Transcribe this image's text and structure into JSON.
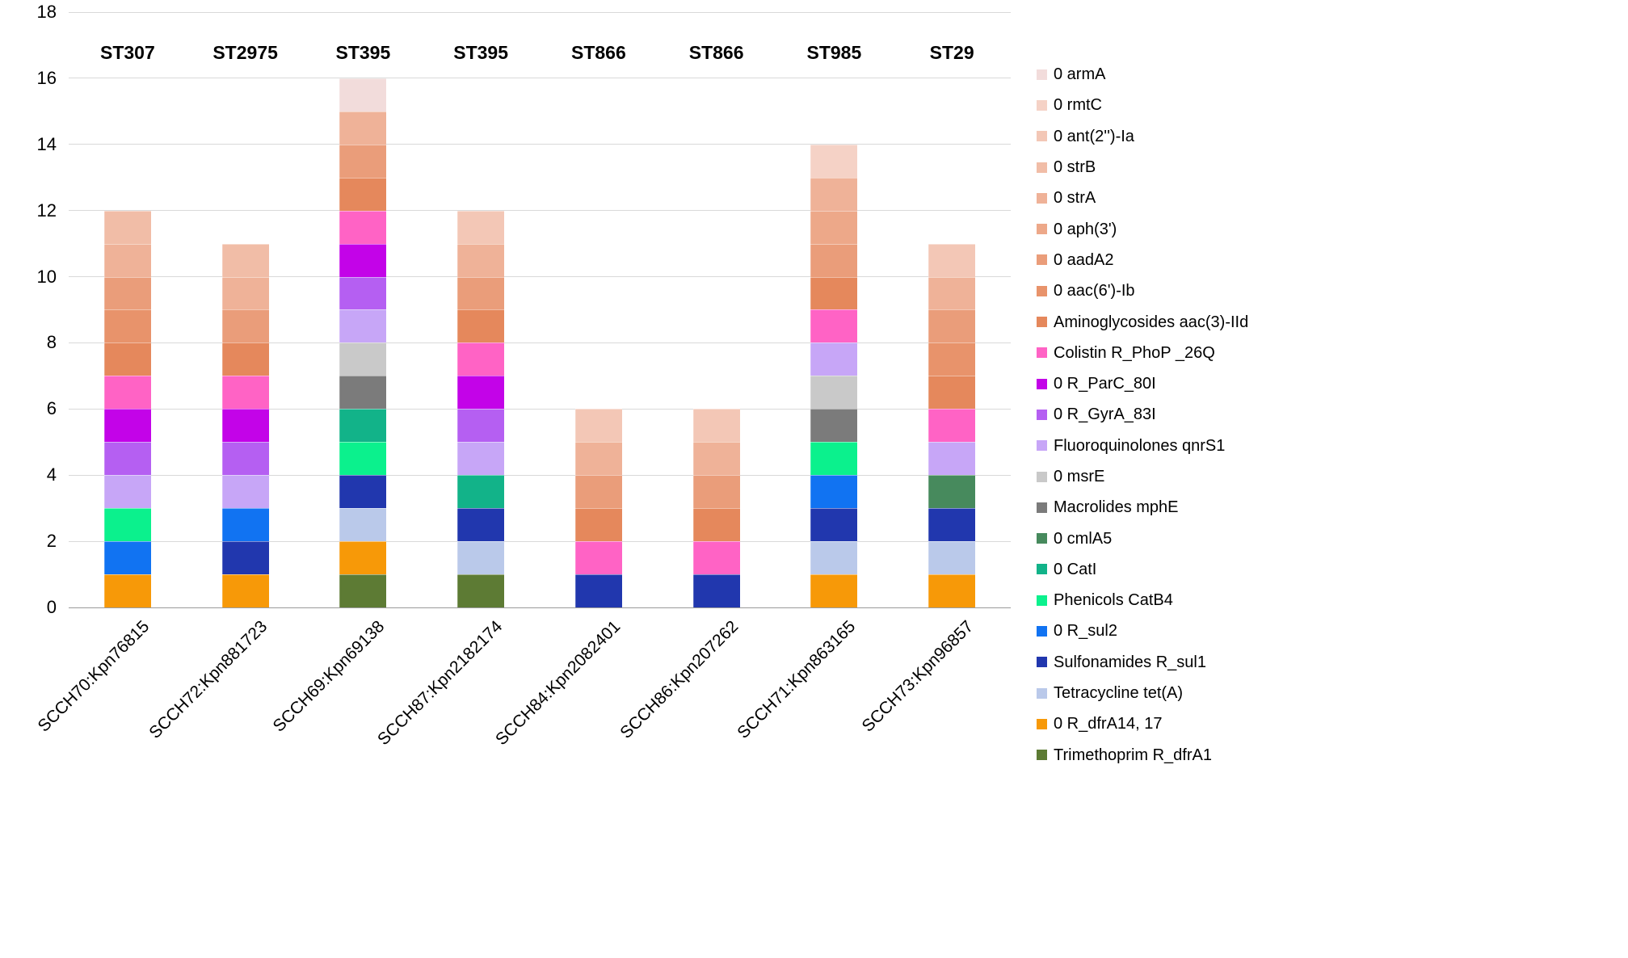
{
  "chart_data": {
    "type": "bar",
    "stacked": true,
    "title": "",
    "xlabel": "",
    "ylabel": "",
    "ylim": [
      0,
      18
    ],
    "ytick_step": 2,
    "yticks": [
      0,
      2,
      4,
      6,
      8,
      10,
      12,
      14,
      16,
      18
    ],
    "grid": true,
    "legend_position": "right",
    "unit_per_segment": 1,
    "genes": [
      {
        "id": "armA",
        "label": "0  armA",
        "color": "#f2dcdb"
      },
      {
        "id": "rmtC",
        "label": "0  rmtC",
        "color": "#f5d2c6"
      },
      {
        "id": "ant2Ia",
        "label": "0  ant(2'')-Ia",
        "color": "#f3c7b6"
      },
      {
        "id": "strB",
        "label": "0  strB",
        "color": "#f1bda7"
      },
      {
        "id": "strA",
        "label": "0  strA",
        "color": "#efb298"
      },
      {
        "id": "aph3",
        "label": "0 aph(3')",
        "color": "#eda889"
      },
      {
        "id": "aadA2",
        "label": "0  aadA2",
        "color": "#ea9d7a"
      },
      {
        "id": "aac6Ib",
        "label": "0 aac(6')-Ib",
        "color": "#e8936b"
      },
      {
        "id": "aac3IId",
        "label": "Aminoglycosides aac(3)-IId",
        "color": "#e5885c"
      },
      {
        "id": "PhoP",
        "label": "Colistin R_PhoP _26Q",
        "color": "#ff63c5"
      },
      {
        "id": "ParC",
        "label": "0 R_ParC_80I",
        "color": "#c303e8"
      },
      {
        "id": "GyrA",
        "label": "0 R_GyrA_83I",
        "color": "#b55ff2"
      },
      {
        "id": "qnrS1",
        "label": "Fluoroquinolones qnrS1",
        "color": "#c7a6f7"
      },
      {
        "id": "msrE",
        "label": "0 msrE",
        "color": "#c9c9c9"
      },
      {
        "id": "mphE",
        "label": "Macrolides mphE",
        "color": "#7b7b7b"
      },
      {
        "id": "cmlA5",
        "label": "0 cmlA5",
        "color": "#478a5d"
      },
      {
        "id": "CatI",
        "label": "0 CatI",
        "color": "#12b389"
      },
      {
        "id": "CatB4",
        "label": "Phenicols CatB4",
        "color": "#0bf18d"
      },
      {
        "id": "sul2",
        "label": "0 R_sul2",
        "color": "#1173f2"
      },
      {
        "id": "sul1",
        "label": "Sulfonamides R_sul1",
        "color": "#2137ae"
      },
      {
        "id": "tetA",
        "label": "Tetracycline tet(A)",
        "color": "#bac9ea"
      },
      {
        "id": "dfrA14",
        "label": "0 R_dfrA14, 17",
        "color": "#f79908"
      },
      {
        "id": "dfrA1",
        "label": "Trimethoprim R_dfrA1",
        "color": "#5d7b34"
      }
    ],
    "bars": [
      {
        "category": "SCCH70:Kpn76815",
        "st": "ST307",
        "total": 12,
        "segments_bottom_to_top": [
          "dfrA14",
          "sul2",
          "CatB4",
          "qnrS1",
          "GyrA",
          "ParC",
          "PhoP",
          "aac3IId",
          "aac6Ib",
          "aadA2",
          "strA",
          "strB"
        ]
      },
      {
        "category": "SCCH72:Kpn881723",
        "st": "ST2975",
        "total": 11,
        "segments_bottom_to_top": [
          "dfrA14",
          "sul1",
          "sul2",
          "qnrS1",
          "GyrA",
          "ParC",
          "PhoP",
          "aac3IId",
          "aadA2",
          "strA",
          "strB"
        ]
      },
      {
        "category": "SCCH69:Kpn69138",
        "st": "ST395",
        "total": 16,
        "segments_bottom_to_top": [
          "dfrA1",
          "dfrA14",
          "tetA",
          "sul1",
          "CatB4",
          "CatI",
          "mphE",
          "msrE",
          "qnrS1",
          "GyrA",
          "ParC",
          "PhoP",
          "aac3IId",
          "aadA2",
          "strA",
          "armA"
        ]
      },
      {
        "category": "SCCH87:Kpn2182174",
        "st": "ST395",
        "total": 12,
        "segments_bottom_to_top": [
          "dfrA1",
          "tetA",
          "sul1",
          "CatI",
          "qnrS1",
          "GyrA",
          "ParC",
          "PhoP",
          "aac3IId",
          "aadA2",
          "strA",
          "ant2Ia"
        ]
      },
      {
        "category": "SCCH84:Kpn2082401",
        "st": "ST866",
        "total": 6,
        "segments_bottom_to_top": [
          "sul1",
          "PhoP",
          "aac3IId",
          "aadA2",
          "strA",
          "ant2Ia"
        ]
      },
      {
        "category": "SCCH86:Kpn207262",
        "st": "ST866",
        "total": 6,
        "segments_bottom_to_top": [
          "sul1",
          "PhoP",
          "aac3IId",
          "aadA2",
          "strA",
          "ant2Ia"
        ]
      },
      {
        "category": "SCCH71:Kpn863165",
        "st": "ST985",
        "total": 14,
        "segments_bottom_to_top": [
          "dfrA14",
          "tetA",
          "sul1",
          "sul2",
          "CatB4",
          "mphE",
          "msrE",
          "qnrS1",
          "PhoP",
          "aac3IId",
          "aadA2",
          "aph3",
          "strA",
          "rmtC"
        ]
      },
      {
        "category": "SCCH73:Kpn96857",
        "st": "ST29",
        "total": 11,
        "segments_bottom_to_top": [
          "dfrA14",
          "tetA",
          "sul1",
          "cmlA5",
          "qnrS1",
          "PhoP",
          "aac3IId",
          "aac6Ib",
          "aadA2",
          "strA",
          "ant2Ia"
        ]
      }
    ]
  }
}
